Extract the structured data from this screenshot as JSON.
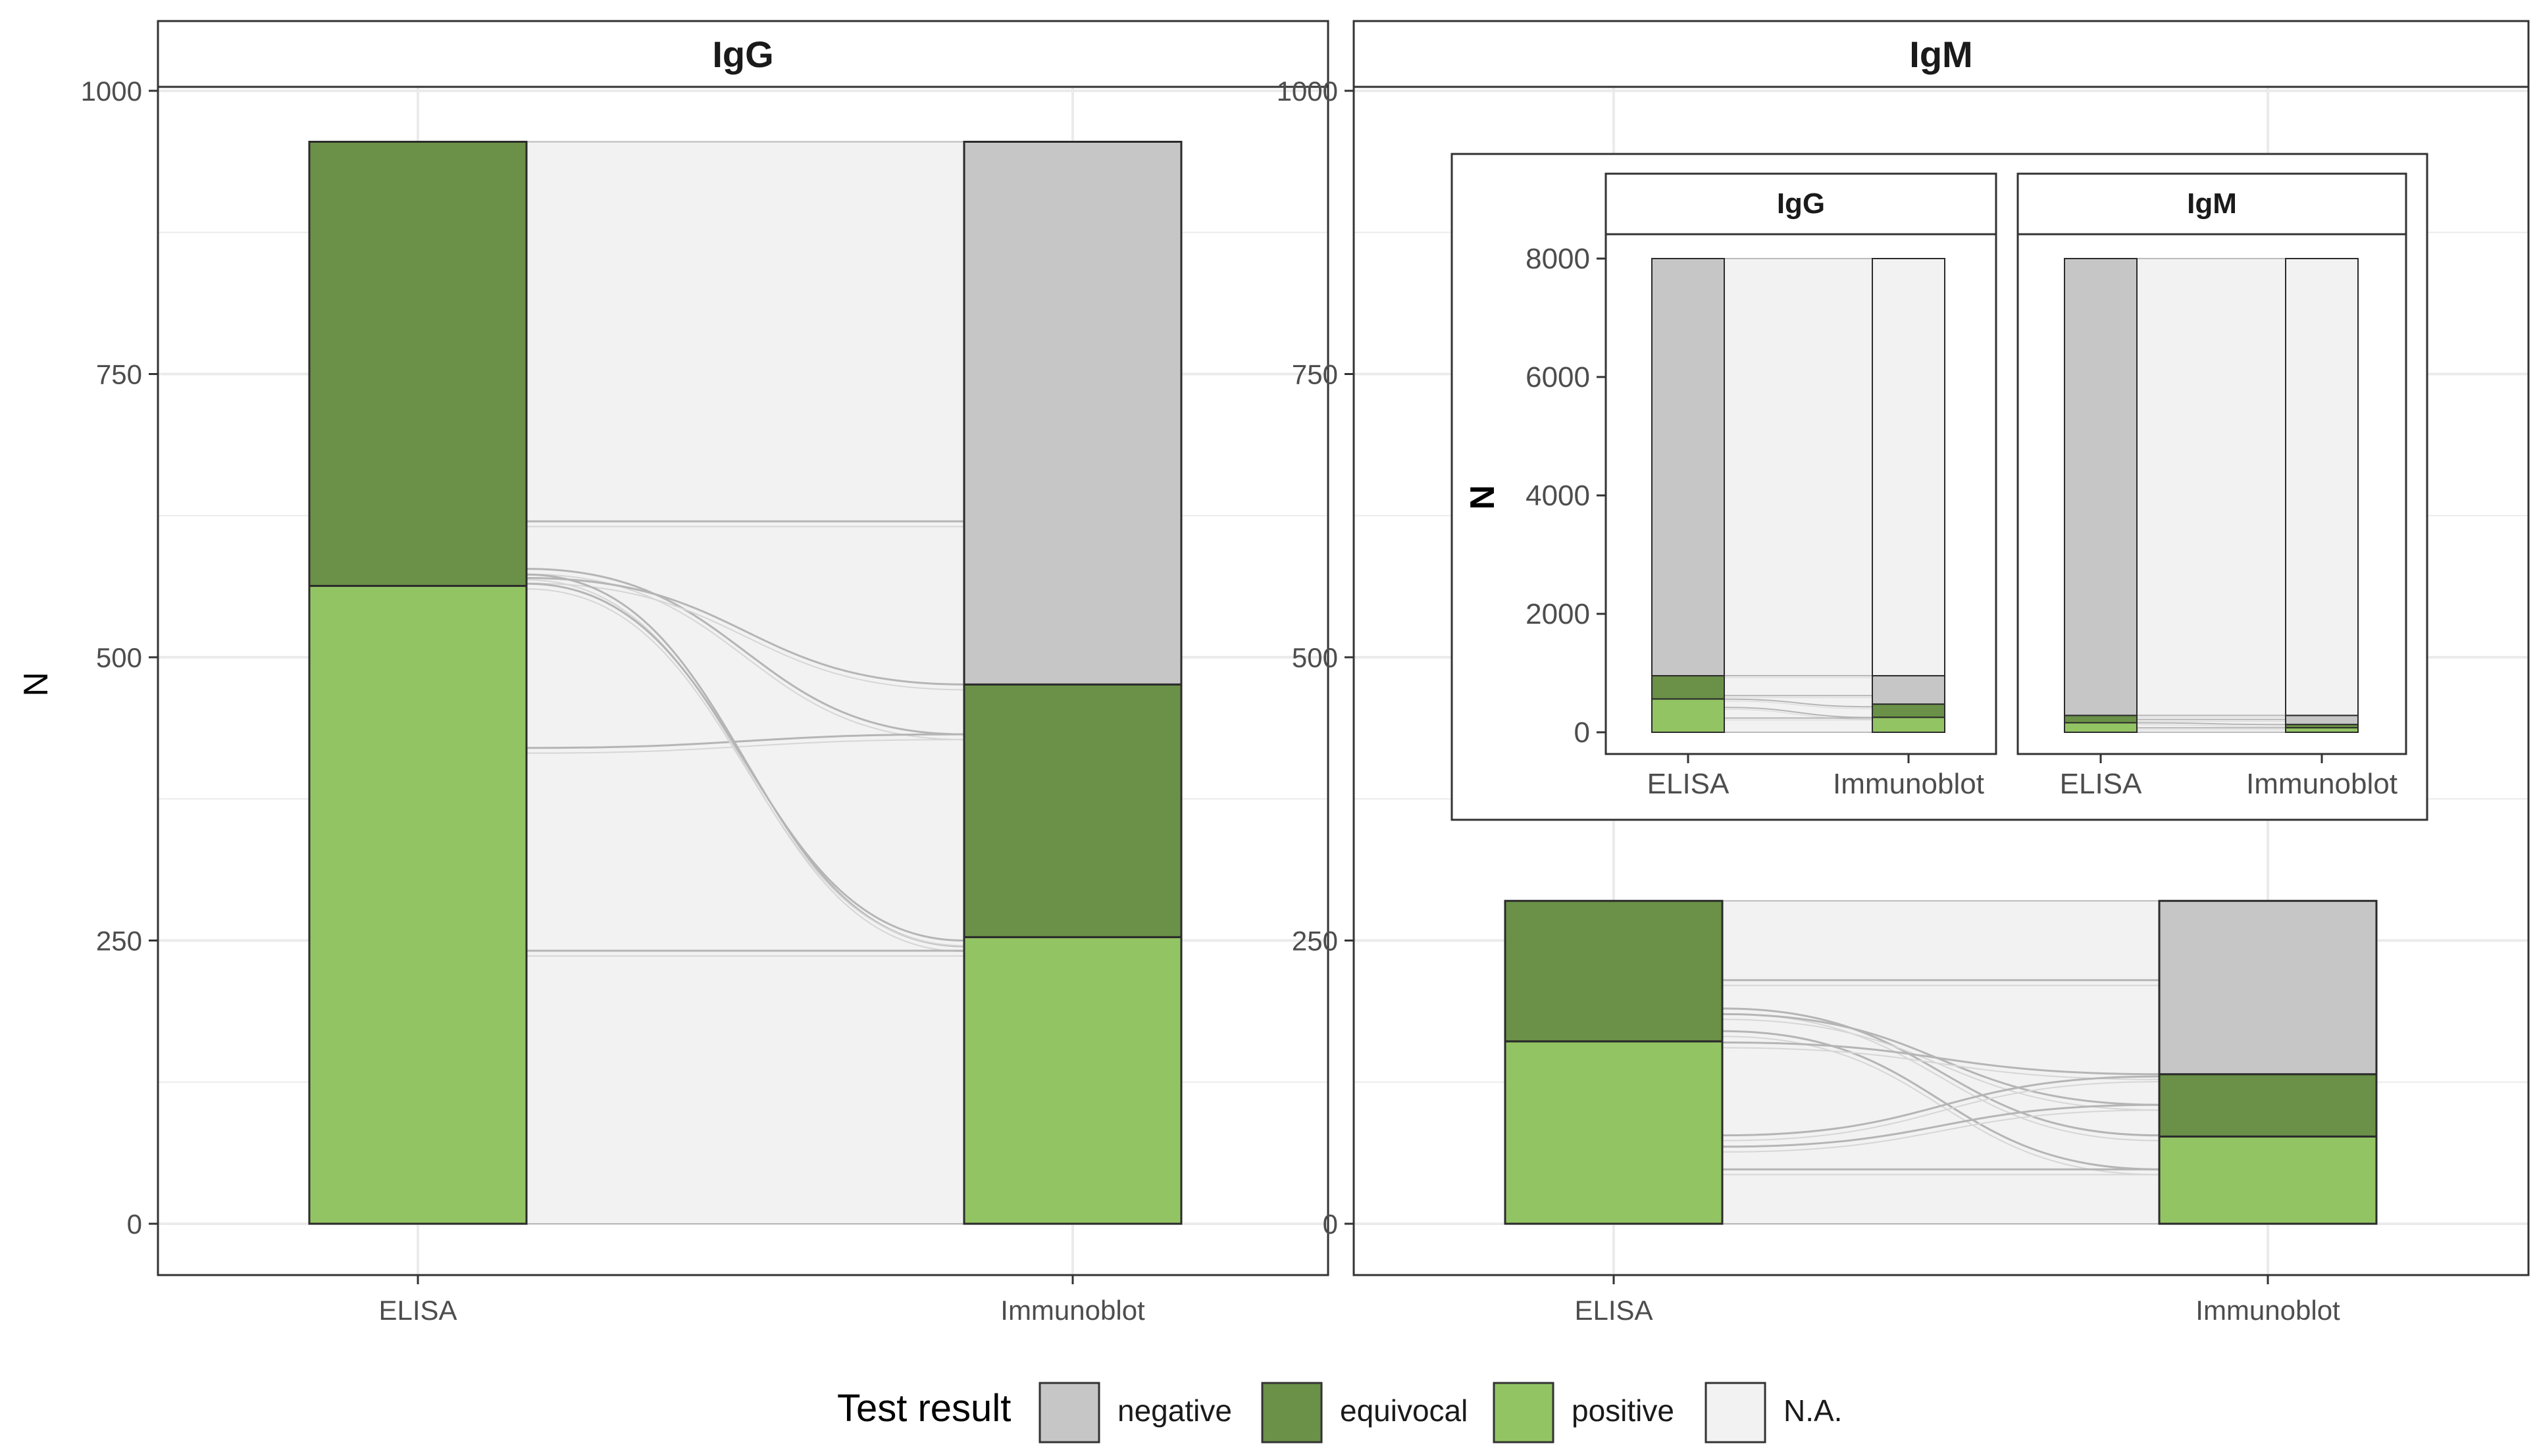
{
  "colors": {
    "negative": "#c6c6c6",
    "equivocal": "#6a9147",
    "positive": "#93c464",
    "na": "#f2f2f2",
    "grid": "#ebebeb",
    "panel_border": "#333333",
    "strip_fill": "#ffffff",
    "text": "#4d4d4d"
  },
  "legend": {
    "title": "Test result",
    "items": [
      {
        "key": "negative",
        "label": "negative"
      },
      {
        "key": "equivocal",
        "label": "equivocal"
      },
      {
        "key": "positive",
        "label": "positive"
      },
      {
        "key": "na",
        "label": "N.A."
      }
    ]
  },
  "chart_data": [
    {
      "type": "alluvial",
      "panel": "IgG",
      "title": "IgG",
      "ylabel": "N",
      "xlabel": "",
      "x": [
        "ELISA",
        "Immunoblot"
      ],
      "ylim": [
        0,
        1000
      ],
      "yticks": [
        0,
        250,
        500,
        750,
        1000
      ],
      "grid": true,
      "stacks": {
        "ELISA": [
          {
            "result": "positive",
            "value": 563
          },
          {
            "result": "equivocal",
            "value": 392
          }
        ],
        "Immunoblot": [
          {
            "result": "positive",
            "value": 253
          },
          {
            "result": "equivocal",
            "value": 223
          },
          {
            "result": "negative",
            "value": 479
          }
        ]
      },
      "flows": [
        {
          "from": "positive",
          "to": "positive",
          "value": 241
        },
        {
          "from": "positive",
          "to": "equivocal",
          "value": 180
        },
        {
          "from": "positive",
          "to": "negative",
          "value": 142
        },
        {
          "from": "equivocal",
          "to": "positive",
          "value": 12
        },
        {
          "from": "equivocal",
          "to": "equivocal",
          "value": 43
        },
        {
          "from": "equivocal",
          "to": "negative",
          "value": 337
        }
      ],
      "flow_boundaries": [
        {
          "from": 620,
          "to": 620
        },
        {
          "from": 578,
          "to": 432
        },
        {
          "from": 570,
          "to": 476
        },
        {
          "from": 420,
          "to": 432
        },
        {
          "from": 573,
          "to": 245
        },
        {
          "from": 565,
          "to": 250
        },
        {
          "from": 241,
          "to": 241
        }
      ]
    },
    {
      "type": "alluvial",
      "panel": "IgM",
      "title": "IgM",
      "ylabel": "N",
      "xlabel": "",
      "x": [
        "ELISA",
        "Immunoblot"
      ],
      "ylim": [
        0,
        1000
      ],
      "yticks": [
        0,
        250,
        500,
        750,
        1000
      ],
      "grid": true,
      "stacks": {
        "ELISA": [
          {
            "result": "positive",
            "value": 161
          },
          {
            "result": "equivocal",
            "value": 124
          }
        ],
        "Immunoblot": [
          {
            "result": "positive",
            "value": 77
          },
          {
            "result": "equivocal",
            "value": 55
          },
          {
            "result": "negative",
            "value": 153
          }
        ]
      },
      "flows": [
        {
          "from": "positive",
          "to": "positive",
          "value": 48
        },
        {
          "from": "positive",
          "to": "equivocal",
          "value": 30
        },
        {
          "from": "positive",
          "to": "negative",
          "value": 83
        },
        {
          "from": "equivocal",
          "to": "positive",
          "value": 29
        },
        {
          "from": "equivocal",
          "to": "equivocal",
          "value": 25
        },
        {
          "from": "equivocal",
          "to": "negative",
          "value": 70
        }
      ],
      "flow_boundaries": [
        {
          "from": 215,
          "to": 215
        },
        {
          "from": 190,
          "to": 78
        },
        {
          "from": 185,
          "to": 105
        },
        {
          "from": 170,
          "to": 48
        },
        {
          "from": 160,
          "to": 132
        },
        {
          "from": 78,
          "to": 130
        },
        {
          "from": 68,
          "to": 105
        },
        {
          "from": 48,
          "to": 48
        }
      ]
    },
    {
      "type": "alluvial",
      "panel": "inset-IgG",
      "title": "IgG",
      "ylabel": "N",
      "xlabel": "",
      "x": [
        "ELISA",
        "Immunoblot"
      ],
      "ylim": [
        0,
        8000
      ],
      "yticks": [
        0,
        2000,
        4000,
        6000,
        8000
      ],
      "grid": false,
      "stacks": {
        "ELISA": [
          {
            "result": "positive",
            "value": 563
          },
          {
            "result": "equivocal",
            "value": 392
          },
          {
            "result": "negative",
            "value": 7045
          }
        ],
        "Immunoblot": [
          {
            "result": "positive",
            "value": 253
          },
          {
            "result": "equivocal",
            "value": 223
          },
          {
            "result": "negative",
            "value": 479
          },
          {
            "result": "na",
            "value": 7045
          }
        ]
      },
      "flow_boundaries": [
        {
          "from": 955,
          "to": 955
        },
        {
          "from": 620,
          "to": 620
        },
        {
          "from": 560,
          "to": 430
        },
        {
          "from": 420,
          "to": 250
        },
        {
          "from": 240,
          "to": 240
        }
      ]
    },
    {
      "type": "alluvial",
      "panel": "inset-IgM",
      "title": "IgM",
      "ylabel": "",
      "xlabel": "",
      "x": [
        "ELISA",
        "Immunoblot"
      ],
      "ylim": [
        0,
        8000
      ],
      "yticks": [],
      "grid": false,
      "stacks": {
        "ELISA": [
          {
            "result": "positive",
            "value": 161
          },
          {
            "result": "equivocal",
            "value": 124
          },
          {
            "result": "negative",
            "value": 7715
          }
        ],
        "Immunoblot": [
          {
            "result": "positive",
            "value": 77
          },
          {
            "result": "equivocal",
            "value": 55
          },
          {
            "result": "negative",
            "value": 153
          },
          {
            "result": "na",
            "value": 7715
          }
        ]
      },
      "flow_boundaries": [
        {
          "from": 285,
          "to": 285
        },
        {
          "from": 215,
          "to": 215
        },
        {
          "from": 160,
          "to": 130
        },
        {
          "from": 75,
          "to": 75
        }
      ]
    }
  ]
}
